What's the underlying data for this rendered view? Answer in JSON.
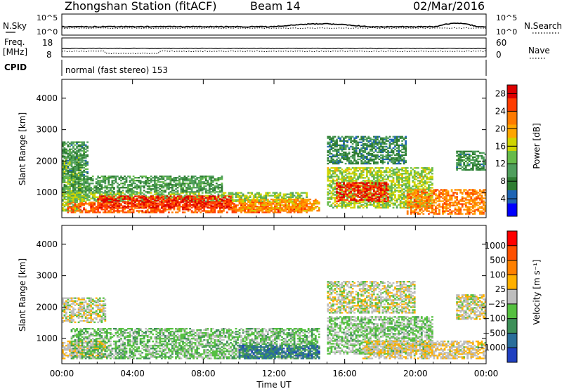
{
  "header": {
    "station": "Zhongshan Station (fitACF)",
    "beam": "Beam 14",
    "date": "02/Mar/2016"
  },
  "status_panels": {
    "nsky_label": "N.Sky",
    "nsky_ticks": [
      "10^5",
      "10^0"
    ],
    "nsearch_label": "N.Search",
    "nsearch_ticks": [
      "10^5",
      "10^0"
    ],
    "freq_label_1": "Freq.",
    "freq_label_2": "[MHz]",
    "freq_ticks": [
      "18",
      "8"
    ],
    "nave_label": "Nave",
    "nave_ticks": [
      "60",
      "0"
    ],
    "cpid_label": "CPID",
    "cpid_text": "normal (fast stereo) 153"
  },
  "chart_data": [
    {
      "type": "heatmap",
      "panel": "power",
      "ylabel": "Slant Range [km]",
      "xlabel": "",
      "yticks": [
        1000,
        2000,
        3000,
        4000
      ],
      "ylim": [
        200,
        4600
      ],
      "xticks": [
        "00:00",
        "04:00",
        "08:00",
        "12:00",
        "16:00",
        "20:00",
        "00:00"
      ],
      "xlim_hours": [
        0,
        24
      ],
      "colorbar": {
        "label": "Power [dB]",
        "ticks": [
          "4",
          "8",
          "12",
          "16",
          "20",
          "24",
          "28"
        ],
        "range": [
          0,
          30
        ],
        "colors": [
          "#0000ff",
          "#1e64b4",
          "#2e7d32",
          "#4f9e5c",
          "#66bb4a",
          "#cfd400",
          "#ffa500",
          "#ff7a00",
          "#ff3c00",
          "#dd0000"
        ]
      },
      "regions": [
        {
          "t": [
            0.0,
            1.0
          ],
          "r": [
            400,
            2200
          ],
          "v": 14
        },
        {
          "t": [
            0.3,
            13.8
          ],
          "r": [
            350,
            700
          ],
          "v": 24
        },
        {
          "t": [
            0.3,
            13.8
          ],
          "r": [
            700,
            1000
          ],
          "v": 14
        },
        {
          "t": [
            2.0,
            9.5
          ],
          "r": [
            500,
            900
          ],
          "v": 27
        },
        {
          "t": [
            10.0,
            14.5
          ],
          "r": [
            400,
            800
          ],
          "v": 20
        },
        {
          "t": [
            0.0,
            9.0
          ],
          "r": [
            1000,
            1500
          ],
          "v": 10
        },
        {
          "t": [
            0.0,
            1.5
          ],
          "r": [
            1500,
            2600
          ],
          "v": 9
        },
        {
          "t": [
            15.0,
            21.0
          ],
          "r": [
            500,
            1800
          ],
          "v": 15
        },
        {
          "t": [
            15.5,
            18.5
          ],
          "r": [
            700,
            1300
          ],
          "v": 27
        },
        {
          "t": [
            15.0,
            19.5
          ],
          "r": [
            1900,
            2800
          ],
          "v": 8
        },
        {
          "t": [
            19.5,
            24.0
          ],
          "r": [
            300,
            1100
          ],
          "v": 22
        },
        {
          "t": [
            22.3,
            24.0
          ],
          "r": [
            1700,
            2300
          ],
          "v": 9
        }
      ]
    },
    {
      "type": "heatmap",
      "panel": "velocity",
      "ylabel": "Slant Range [km]",
      "xlabel": "Time UT",
      "yticks": [
        1000,
        2000,
        3000,
        4000
      ],
      "ylim": [
        200,
        4600
      ],
      "xticks": [
        "00:00",
        "04:00",
        "08:00",
        "12:00",
        "16:00",
        "20:00",
        "00:00"
      ],
      "xlim_hours": [
        0,
        24
      ],
      "colorbar": {
        "label": "Velocity [m s⁻¹]",
        "ticks": [
          "1000",
          "500",
          "100",
          "25",
          "−25",
          "−100",
          "−500",
          "−1000"
        ],
        "range": [
          -1000,
          1000
        ],
        "colors": [
          "#2040c0",
          "#2a6e9a",
          "#3d8f58",
          "#55c040",
          "#bdbdbd",
          "#ffb000",
          "#ff8000",
          "#ff5000",
          "#ff0000"
        ]
      },
      "regions": [
        {
          "t": [
            0.0,
            2.5
          ],
          "r": [
            350,
            900
          ],
          "v": 120
        },
        {
          "t": [
            0.5,
            14.5
          ],
          "r": [
            350,
            1300
          ],
          "v": -200
        },
        {
          "t": [
            10.0,
            14.5
          ],
          "r": [
            350,
            800
          ],
          "v": -600
        },
        {
          "t": [
            15.0,
            21.0
          ],
          "r": [
            500,
            1700
          ],
          "v": -150
        },
        {
          "t": [
            17.0,
            24.0
          ],
          "r": [
            350,
            900
          ],
          "v": 90
        },
        {
          "t": [
            0.0,
            2.5
          ],
          "r": [
            1500,
            2300
          ],
          "v": 0
        },
        {
          "t": [
            15.0,
            20.0
          ],
          "r": [
            1800,
            2800
          ],
          "v": 0
        },
        {
          "t": [
            22.3,
            24.0
          ],
          "r": [
            1600,
            2400
          ],
          "v": 0
        }
      ]
    }
  ]
}
